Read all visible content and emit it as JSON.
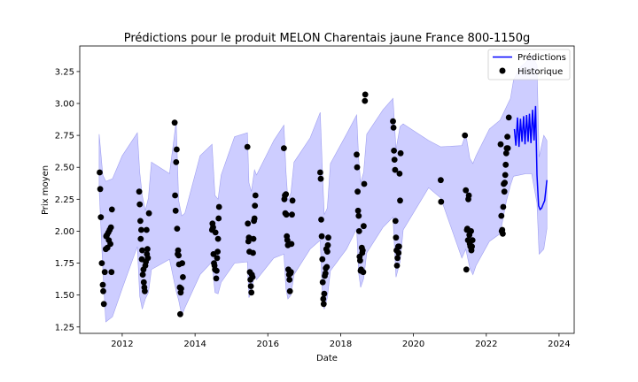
{
  "chart_data": {
    "type": "line",
    "title": "Prédictions pour le produit MELON Charentais jaune France 800-1150g",
    "xlabel": "Date",
    "ylabel": "Prix moyen",
    "xlim": [
      "2010-11-01",
      "2024-06-01"
    ],
    "ylim": [
      1.2,
      3.45
    ],
    "x_ticks": [
      "2012",
      "2014",
      "2016",
      "2018",
      "2020",
      "2022",
      "2024"
    ],
    "y_ticks": [
      "1.25",
      "1.50",
      "1.75",
      "2.00",
      "2.25",
      "2.50",
      "2.75",
      "3.00",
      "3.25"
    ],
    "legend_position": "top-right",
    "legend": [
      {
        "label": "Prédictions",
        "marker": "line"
      },
      {
        "label": "Historique",
        "marker": "dot"
      }
    ],
    "colors": {
      "prediction_line": "#0000ff",
      "band_fill": "#c8c8ff",
      "band_stroke": "#a0a0f0",
      "points": "#000000"
    },
    "series": [
      {
        "name": "Historique",
        "kind": "scatter",
        "points": [
          [
            "2011-05-20",
            2.46
          ],
          [
            "2011-05-25",
            2.33
          ],
          [
            "2011-06-01",
            2.11
          ],
          [
            "2011-06-10",
            1.75
          ],
          [
            "2011-06-20",
            1.58
          ],
          [
            "2011-06-25",
            1.53
          ],
          [
            "2011-07-01",
            1.43
          ],
          [
            "2011-07-10",
            1.68
          ],
          [
            "2011-07-20",
            1.86
          ],
          [
            "2011-07-25",
            1.96
          ],
          [
            "2011-08-01",
            1.97
          ],
          [
            "2011-08-05",
            1.87
          ],
          [
            "2011-08-15",
            1.99
          ],
          [
            "2011-08-20",
            1.93
          ],
          [
            "2011-08-28",
            2.01
          ],
          [
            "2011-09-05",
            1.9
          ],
          [
            "2011-09-10",
            2.03
          ],
          [
            "2011-09-15",
            1.68
          ],
          [
            "2011-09-20",
            2.17
          ],
          [
            "2012-06-20",
            2.31
          ],
          [
            "2012-06-25",
            2.21
          ],
          [
            "2012-07-01",
            2.08
          ],
          [
            "2012-07-05",
            1.94
          ],
          [
            "2012-07-10",
            2.01
          ],
          [
            "2012-07-15",
            1.78
          ],
          [
            "2012-07-20",
            1.85
          ],
          [
            "2012-07-25",
            1.66
          ],
          [
            "2012-08-01",
            1.7
          ],
          [
            "2012-08-05",
            1.6
          ],
          [
            "2012-08-10",
            1.56
          ],
          [
            "2012-08-15",
            1.53
          ],
          [
            "2012-08-20",
            1.73
          ],
          [
            "2012-08-25",
            1.76
          ],
          [
            "2012-09-01",
            2.01
          ],
          [
            "2012-09-05",
            1.82
          ],
          [
            "2012-09-10",
            1.86
          ],
          [
            "2012-09-15",
            1.79
          ],
          [
            "2012-09-25",
            2.14
          ],
          [
            "2013-06-10",
            2.85
          ],
          [
            "2013-06-15",
            2.28
          ],
          [
            "2013-06-20",
            2.16
          ],
          [
            "2013-06-25",
            2.54
          ],
          [
            "2013-07-01",
            2.64
          ],
          [
            "2013-07-05",
            2.02
          ],
          [
            "2013-07-10",
            1.82
          ],
          [
            "2013-07-15",
            1.85
          ],
          [
            "2013-07-20",
            1.81
          ],
          [
            "2013-07-25",
            1.74
          ],
          [
            "2013-08-01",
            1.56
          ],
          [
            "2013-08-05",
            1.35
          ],
          [
            "2013-08-10",
            1.52
          ],
          [
            "2013-08-15",
            1.55
          ],
          [
            "2013-08-25",
            1.75
          ],
          [
            "2013-09-01",
            1.64
          ],
          [
            "2014-06-20",
            2.01
          ],
          [
            "2014-06-25",
            2.06
          ],
          [
            "2014-07-01",
            2.03
          ],
          [
            "2014-07-05",
            1.82
          ],
          [
            "2014-07-10",
            1.75
          ],
          [
            "2014-07-15",
            1.73
          ],
          [
            "2014-07-20",
            1.7
          ],
          [
            "2014-07-25",
            1.99
          ],
          [
            "2014-08-01",
            1.63
          ],
          [
            "2014-08-05",
            1.69
          ],
          [
            "2014-08-10",
            1.79
          ],
          [
            "2014-08-15",
            1.84
          ],
          [
            "2014-08-20",
            1.94
          ],
          [
            "2014-08-25",
            2.1
          ],
          [
            "2014-08-30",
            2.19
          ],
          [
            "2015-06-10",
            2.66
          ],
          [
            "2015-06-15",
            2.06
          ],
          [
            "2015-06-20",
            1.92
          ],
          [
            "2015-06-25",
            1.95
          ],
          [
            "2015-07-01",
            1.84
          ],
          [
            "2015-07-05",
            1.68
          ],
          [
            "2015-07-10",
            1.62
          ],
          [
            "2015-07-15",
            1.57
          ],
          [
            "2015-07-20",
            1.52
          ],
          [
            "2015-07-25",
            1.66
          ],
          [
            "2015-08-01",
            1.64
          ],
          [
            "2015-08-05",
            1.83
          ],
          [
            "2015-08-10",
            1.94
          ],
          [
            "2015-08-15",
            2.08
          ],
          [
            "2015-08-20",
            2.1
          ],
          [
            "2015-08-25",
            2.2
          ],
          [
            "2015-08-30",
            2.28
          ],
          [
            "2016-06-10",
            2.65
          ],
          [
            "2016-06-15",
            2.25
          ],
          [
            "2016-06-20",
            2.28
          ],
          [
            "2016-06-25",
            2.14
          ],
          [
            "2016-07-01",
            2.29
          ],
          [
            "2016-07-05",
            2.13
          ],
          [
            "2016-07-10",
            1.96
          ],
          [
            "2016-07-15",
            1.93
          ],
          [
            "2016-07-20",
            1.89
          ],
          [
            "2016-07-25",
            1.7
          ],
          [
            "2016-08-01",
            1.66
          ],
          [
            "2016-08-05",
            1.62
          ],
          [
            "2016-08-10",
            1.53
          ],
          [
            "2016-08-15",
            1.67
          ],
          [
            "2016-08-20",
            1.68
          ],
          [
            "2016-08-25",
            1.9
          ],
          [
            "2016-08-30",
            2.13
          ],
          [
            "2016-09-05",
            2.24
          ],
          [
            "2017-06-10",
            2.46
          ],
          [
            "2017-06-15",
            2.41
          ],
          [
            "2017-06-20",
            2.09
          ],
          [
            "2017-06-25",
            1.96
          ],
          [
            "2017-07-01",
            1.78
          ],
          [
            "2017-07-05",
            1.6
          ],
          [
            "2017-07-10",
            1.47
          ],
          [
            "2017-07-15",
            1.43
          ],
          [
            "2017-07-20",
            1.51
          ],
          [
            "2017-07-25",
            1.65
          ],
          [
            "2017-08-01",
            1.67
          ],
          [
            "2017-08-05",
            1.71
          ],
          [
            "2017-08-10",
            1.86
          ],
          [
            "2017-08-15",
            1.72
          ],
          [
            "2017-08-20",
            1.84
          ],
          [
            "2017-08-25",
            1.89
          ],
          [
            "2017-08-30",
            1.95
          ],
          [
            "2018-06-10",
            2.6
          ],
          [
            "2018-06-15",
            2.5
          ],
          [
            "2018-06-20",
            2.31
          ],
          [
            "2018-06-25",
            2.16
          ],
          [
            "2018-07-01",
            2.12
          ],
          [
            "2018-07-05",
            2.0
          ],
          [
            "2018-07-10",
            1.8
          ],
          [
            "2018-07-15",
            1.77
          ],
          [
            "2018-07-20",
            1.69
          ],
          [
            "2018-07-25",
            1.7
          ],
          [
            "2018-08-01",
            1.87
          ],
          [
            "2018-08-05",
            1.83
          ],
          [
            "2018-08-10",
            1.85
          ],
          [
            "2018-08-15",
            1.68
          ],
          [
            "2018-08-20",
            2.04
          ],
          [
            "2018-08-25",
            2.37
          ],
          [
            "2018-09-01",
            3.02
          ],
          [
            "2018-09-05",
            3.07
          ],
          [
            "2019-06-10",
            2.86
          ],
          [
            "2019-06-15",
            2.81
          ],
          [
            "2019-06-20",
            2.63
          ],
          [
            "2019-06-25",
            2.56
          ],
          [
            "2019-07-01",
            2.48
          ],
          [
            "2019-07-05",
            2.08
          ],
          [
            "2019-07-10",
            1.95
          ],
          [
            "2019-07-15",
            1.85
          ],
          [
            "2019-07-20",
            1.73
          ],
          [
            "2019-07-25",
            1.79
          ],
          [
            "2019-08-01",
            1.88
          ],
          [
            "2019-08-05",
            1.83
          ],
          [
            "2019-08-10",
            1.88
          ],
          [
            "2019-08-15",
            2.45
          ],
          [
            "2019-08-20",
            2.24
          ],
          [
            "2019-08-25",
            2.61
          ],
          [
            "2020-10-01",
            2.4
          ],
          [
            "2020-10-05",
            2.23
          ],
          [
            "2021-06-01",
            2.75
          ],
          [
            "2021-06-10",
            2.32
          ],
          [
            "2021-06-15",
            1.7
          ],
          [
            "2021-06-20",
            2.01
          ],
          [
            "2021-06-25",
            2.02
          ],
          [
            "2021-07-01",
            1.93
          ],
          [
            "2021-07-05",
            2.25
          ],
          [
            "2021-07-10",
            2.28
          ],
          [
            "2021-07-15",
            1.97
          ],
          [
            "2021-07-20",
            1.9
          ],
          [
            "2021-07-25",
            1.88
          ],
          [
            "2021-08-01",
            2.0
          ],
          [
            "2021-08-05",
            1.85
          ],
          [
            "2021-08-10",
            1.88
          ],
          [
            "2021-08-15",
            1.93
          ],
          [
            "2022-05-25",
            2.68
          ],
          [
            "2022-06-01",
            2.12
          ],
          [
            "2022-06-05",
            2.0
          ],
          [
            "2022-06-10",
            2.01
          ],
          [
            "2022-06-15",
            1.98
          ],
          [
            "2022-06-20",
            2.19
          ],
          [
            "2022-06-25",
            2.37
          ],
          [
            "2022-07-01",
            2.31
          ],
          [
            "2022-07-05",
            2.38
          ],
          [
            "2022-07-10",
            2.44
          ],
          [
            "2022-07-15",
            2.52
          ],
          [
            "2022-07-20",
            2.61
          ],
          [
            "2022-07-25",
            2.65
          ],
          [
            "2022-08-01",
            2.74
          ],
          [
            "2022-08-05",
            2.65
          ],
          [
            "2022-08-15",
            2.89
          ]
        ]
      },
      {
        "name": "Prédictions",
        "kind": "line",
        "points": [
          [
            "2022-10-10",
            2.8
          ],
          [
            "2022-10-25",
            2.67
          ],
          [
            "2022-11-10",
            2.89
          ],
          [
            "2022-11-25",
            2.66
          ],
          [
            "2022-12-10",
            2.88
          ],
          [
            "2022-12-25",
            2.7
          ],
          [
            "2023-01-10",
            2.9
          ],
          [
            "2023-01-25",
            2.68
          ],
          [
            "2023-02-10",
            2.91
          ],
          [
            "2023-02-25",
            2.7
          ],
          [
            "2023-03-10",
            2.92
          ],
          [
            "2023-03-25",
            2.69
          ],
          [
            "2023-04-10",
            2.95
          ],
          [
            "2023-04-25",
            2.71
          ],
          [
            "2023-05-10",
            2.98
          ],
          [
            "2023-05-25",
            2.44
          ],
          [
            "2023-06-10",
            2.2
          ],
          [
            "2023-06-25",
            2.17
          ],
          [
            "2023-07-10",
            2.18
          ],
          [
            "2023-07-25",
            2.21
          ],
          [
            "2023-08-10",
            2.24
          ],
          [
            "2023-09-01",
            2.4
          ]
        ]
      }
    ],
    "band": {
      "name": "Prédictions interval",
      "x": [
        "2011-05-15",
        "2011-06-20",
        "2011-07-20",
        "2011-09-25",
        "2012-01-01",
        "2012-06-01",
        "2012-06-25",
        "2012-07-20",
        "2012-08-20",
        "2012-09-20",
        "2012-10-20",
        "2013-04-20",
        "2013-06-25",
        "2013-07-20",
        "2013-08-20",
        "2013-09-20",
        "2014-02-20",
        "2014-06-20",
        "2014-07-20",
        "2014-08-20",
        "2014-09-20",
        "2015-02-01",
        "2015-06-10",
        "2015-06-25",
        "2015-07-20",
        "2015-08-20",
        "2015-09-10",
        "2016-03-01",
        "2016-06-10",
        "2016-07-01",
        "2016-07-20",
        "2016-08-20",
        "2016-09-20",
        "2017-03-01",
        "2017-06-10",
        "2017-07-01",
        "2017-07-20",
        "2017-08-20",
        "2017-09-20",
        "2018-03-01",
        "2018-06-10",
        "2018-07-01",
        "2018-07-20",
        "2018-08-20",
        "2018-09-20",
        "2019-03-01",
        "2019-06-10",
        "2019-07-10",
        "2019-08-20",
        "2019-09-20",
        "2020-06-01",
        "2020-10-01",
        "2021-05-01",
        "2021-06-10",
        "2021-07-20",
        "2021-08-20",
        "2021-09-20",
        "2022-02-01",
        "2022-05-20",
        "2022-07-20",
        "2022-09-01",
        "2022-10-01",
        "2022-12-01",
        "2023-02-01",
        "2023-04-01",
        "2023-05-25",
        "2023-06-15",
        "2023-08-01",
        "2023-09-01"
      ],
      "upper": [
        2.76,
        2.44,
        2.39,
        2.41,
        2.59,
        2.77,
        2.46,
        2.28,
        2.16,
        2.26,
        2.54,
        2.45,
        2.86,
        2.24,
        2.12,
        2.14,
        2.59,
        2.68,
        2.28,
        2.25,
        2.44,
        2.74,
        2.77,
        2.38,
        2.31,
        2.48,
        2.44,
        2.71,
        2.83,
        2.47,
        2.24,
        2.3,
        2.54,
        2.73,
        2.93,
        2.48,
        2.13,
        2.18,
        2.53,
        2.76,
        2.91,
        2.56,
        2.38,
        2.46,
        2.76,
        2.95,
        3.04,
        2.64,
        2.82,
        2.84,
        2.71,
        2.66,
        2.67,
        2.76,
        2.57,
        2.53,
        2.59,
        2.8,
        2.87,
        2.97,
        3.04,
        3.18,
        3.28,
        3.32,
        3.38,
        3.3,
        2.58,
        2.75,
        2.71
      ],
      "lower": [
        2.33,
        1.71,
        1.29,
        1.33,
        1.55,
        1.88,
        1.49,
        1.39,
        1.47,
        1.52,
        1.7,
        1.78,
        1.53,
        1.46,
        1.34,
        1.4,
        1.66,
        1.76,
        1.52,
        1.51,
        1.6,
        1.75,
        1.76,
        1.48,
        1.52,
        1.66,
        1.62,
        1.79,
        1.82,
        1.55,
        1.47,
        1.5,
        1.66,
        1.86,
        1.93,
        1.5,
        1.39,
        1.48,
        1.69,
        1.86,
        2.02,
        1.67,
        1.56,
        1.63,
        1.83,
        2.03,
        2.11,
        1.64,
        1.76,
        2.01,
        2.34,
        2.26,
        1.79,
        1.86,
        1.71,
        1.66,
        1.73,
        1.92,
        1.98,
        2.23,
        2.36,
        2.43,
        2.44,
        2.45,
        2.45,
        2.22,
        1.82,
        1.86,
        2.02
      ]
    }
  }
}
